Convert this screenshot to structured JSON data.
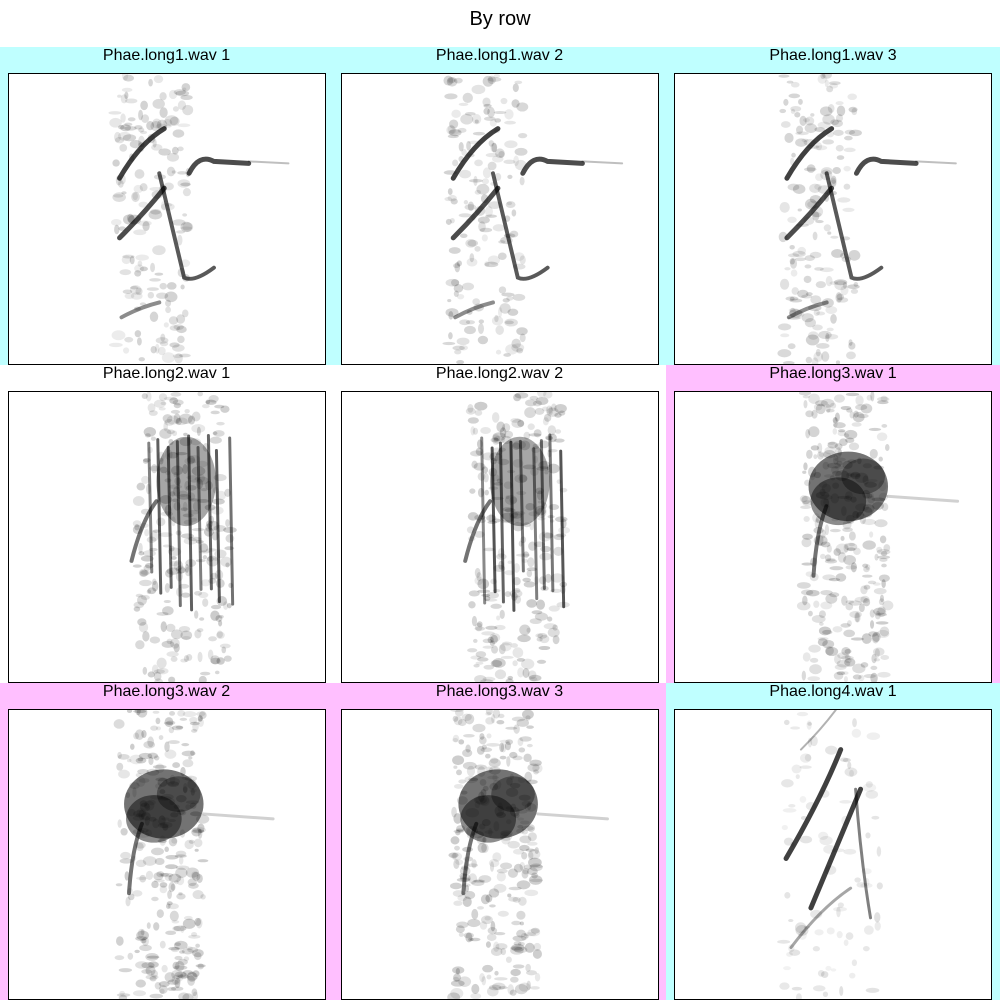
{
  "title": "By row",
  "colors": {
    "group_cyan": "#bfffff",
    "group_magenta": "#ffbfff",
    "ink": "#000000",
    "background": "#ffffff"
  },
  "chart_data": {
    "type": "spectrogram-grid",
    "title": "By row",
    "layout": {
      "rows": 3,
      "cols": 3
    },
    "grid": false,
    "legend": "none",
    "panels": [
      {
        "label": "Phae.long1.wav 1",
        "group": "Phae.long1",
        "group_color": "#bfffff",
        "pattern": "long1"
      },
      {
        "label": "Phae.long1.wav 2",
        "group": "Phae.long1",
        "group_color": "#bfffff",
        "pattern": "long1"
      },
      {
        "label": "Phae.long1.wav 3",
        "group": "Phae.long1",
        "group_color": "#bfffff",
        "pattern": "long1"
      },
      {
        "label": "Phae.long2.wav 1",
        "group": "Phae.long2",
        "group_color": "#ffffff",
        "pattern": "long2"
      },
      {
        "label": "Phae.long2.wav 2",
        "group": "Phae.long2",
        "group_color": "#ffffff",
        "pattern": "long2"
      },
      {
        "label": "Phae.long3.wav 1",
        "group": "Phae.long3",
        "group_color": "#ffbfff",
        "pattern": "long3"
      },
      {
        "label": "Phae.long3.wav 2",
        "group": "Phae.long3",
        "group_color": "#ffbfff",
        "pattern": "long3"
      },
      {
        "label": "Phae.long3.wav 3",
        "group": "Phae.long3",
        "group_color": "#ffbfff",
        "pattern": "long3"
      },
      {
        "label": "Phae.long4.wav 1",
        "group": "Phae.long4",
        "group_color": "#bfffff",
        "pattern": "long4"
      }
    ]
  }
}
